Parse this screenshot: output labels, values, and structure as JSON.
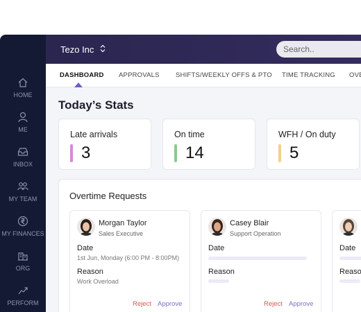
{
  "sidebar": {
    "items": [
      "HOME",
      "ME",
      "INBOX",
      "MY TEAM",
      "MY FINANCES",
      "ORG",
      "PERFORM"
    ]
  },
  "header": {
    "company": "Tezo Inc",
    "search_placeholder": "Search.."
  },
  "tabs": [
    "DASHBOARD",
    "APPROVALS",
    "SHIFTS/WEEKLY OFFS & PTO",
    "TIME TRACKING",
    "OVE"
  ],
  "stats": {
    "title": "Today’s Stats",
    "cards": [
      {
        "label": "Late arrivals",
        "value": 3
      },
      {
        "label": "On time",
        "value": 14
      },
      {
        "label": "WFH / On duty",
        "value": 5
      }
    ]
  },
  "overtime": {
    "title": "Overtime Requests",
    "cards": [
      {
        "name": "Morgan Taylor",
        "role": "Sales Executive",
        "date_label": "Date",
        "date": "1st Jun, Monday (6:00 PM - 8:00PM)",
        "reason_label": "Reason",
        "reason": "Work Overload",
        "reject": "Reject",
        "approve": "Approve"
      },
      {
        "name": "Casey Blair",
        "role": "Support Operation",
        "date_label": "Date",
        "reason_label": "Reason",
        "reject": "Reject",
        "approve": "Approve"
      },
      {
        "date_label": "Date",
        "reason_label": "Reason"
      }
    ]
  }
}
